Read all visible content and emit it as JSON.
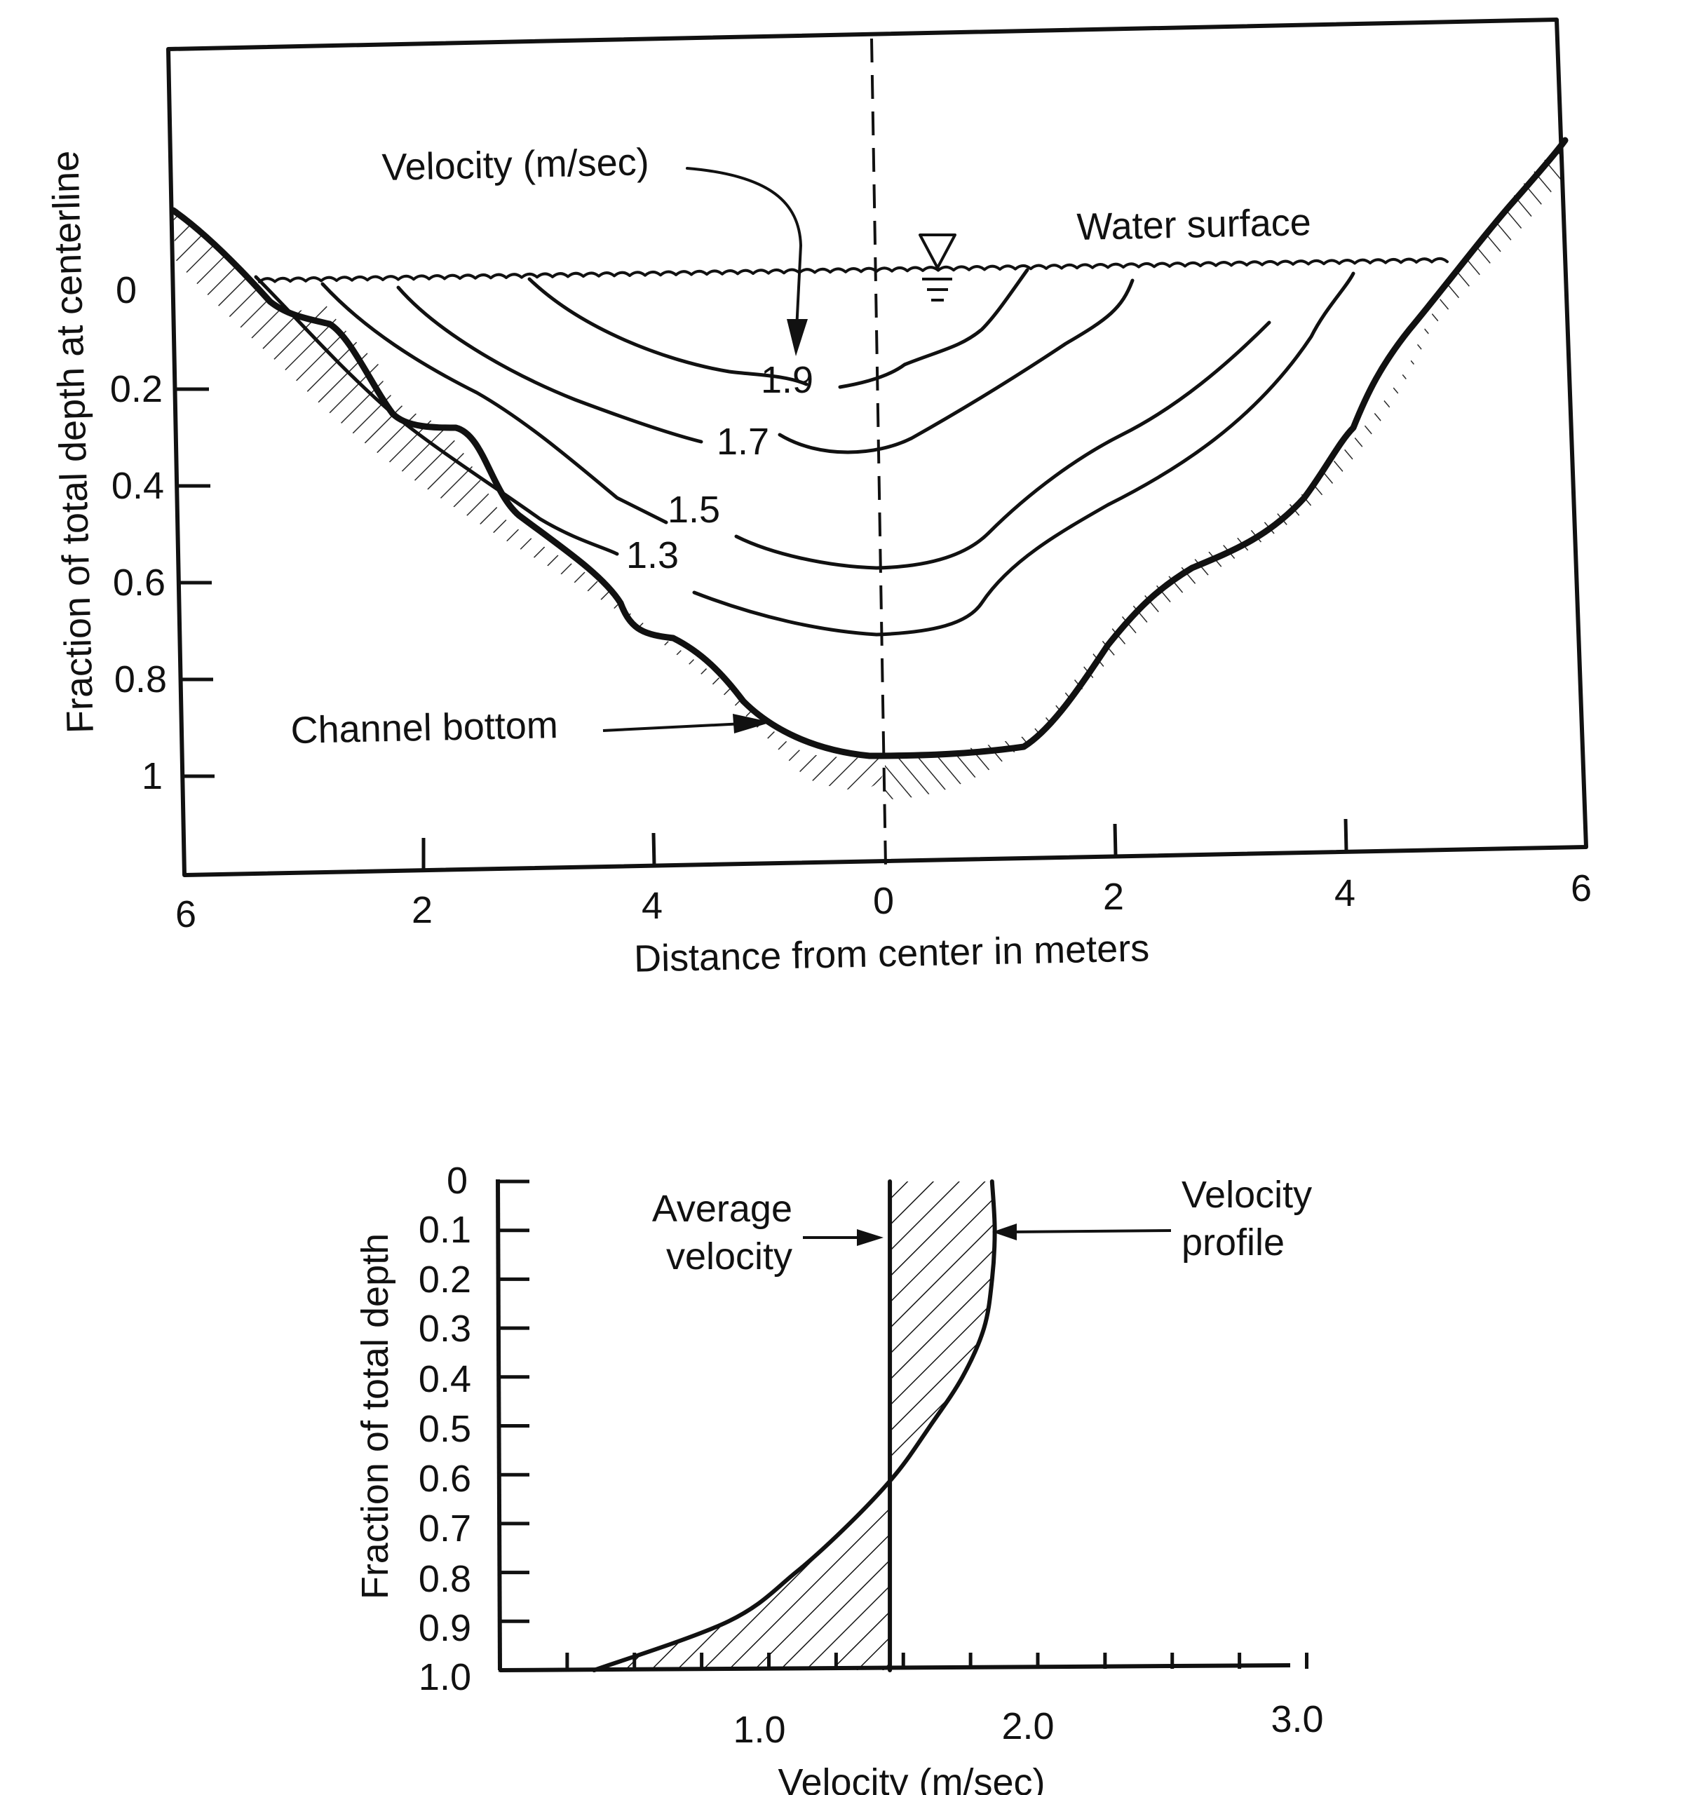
{
  "top_panel": {
    "y_axis_label": "Fraction of total depth at centerline",
    "x_axis_label": "Distance from center in meters",
    "y_ticks": [
      "0",
      "0.2",
      "0.4",
      "0.6",
      "0.8",
      "1"
    ],
    "x_ticks_left": [
      "6",
      "2",
      "4"
    ],
    "x_ticks_right": [
      "0",
      "2",
      "4",
      "6"
    ],
    "annotations": {
      "velocity": "Velocity (m/sec)",
      "water_surface": "Water surface",
      "channel_bottom": "Channel bottom"
    },
    "isovel_labels": [
      "1.9",
      "1.7",
      "1.5",
      "1.3"
    ]
  },
  "bottom_panel": {
    "y_axis_label": "Fraction of total depth",
    "x_axis_label": "Velocity (m/sec)",
    "y_ticks": [
      "0",
      "0.1",
      "0.2",
      "0.3",
      "0.4",
      "0.5",
      "0.6",
      "0.7",
      "0.8",
      "0.9",
      "1.0"
    ],
    "x_ticks": [
      "1.0",
      "2.0",
      "3.0"
    ],
    "annotations": {
      "average_line1": "Average",
      "average_line2": "velocity",
      "profile_line1": "Velocity",
      "profile_line2": "profile"
    }
  },
  "chart_data": {
    "type": "line",
    "xlabel": "Velocity (m/sec)",
    "ylabel": "Fraction of total depth",
    "series": [
      {
        "name": "Velocity profile",
        "x": [
          1.83,
          1.84,
          1.83,
          1.8,
          1.72,
          1.6,
          1.47,
          1.3,
          1.1,
          0.85,
          0.35
        ],
        "y": [
          0.0,
          0.1,
          0.2,
          0.3,
          0.4,
          0.5,
          0.6,
          0.7,
          0.8,
          0.9,
          1.0
        ]
      },
      {
        "name": "Average velocity",
        "x": [
          1.45,
          1.45
        ],
        "y": [
          0.0,
          1.0
        ]
      }
    ],
    "xlim": [
      0.0,
      3.0
    ],
    "ylim": [
      1.0,
      0.0
    ]
  },
  "colors": {
    "ink": "#111111",
    "paper": "#ffffff"
  }
}
